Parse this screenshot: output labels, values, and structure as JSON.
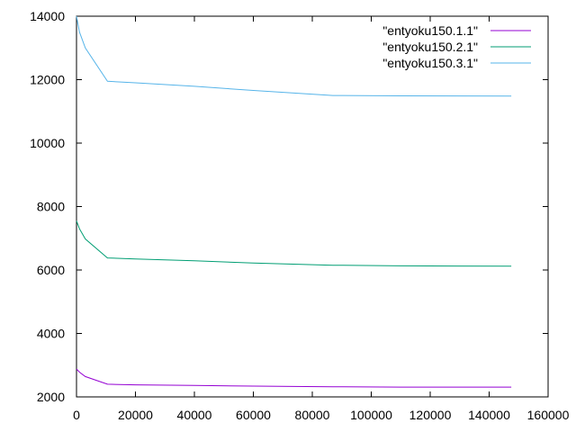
{
  "chart_data": {
    "type": "line",
    "title": "",
    "xlabel": "",
    "ylabel": "",
    "xlim": [
      0,
      160000
    ],
    "ylim": [
      2000,
      14000
    ],
    "xticks": [
      "0",
      "20000",
      "40000",
      "60000",
      "80000",
      "100000",
      "120000",
      "140000",
      "160000"
    ],
    "yticks": [
      "2000",
      "4000",
      "6000",
      "8000",
      "10000",
      "12000",
      "14000"
    ],
    "xtick_values": [
      0,
      20000,
      40000,
      60000,
      80000,
      100000,
      120000,
      140000,
      160000
    ],
    "ytick_values": [
      2000,
      4000,
      6000,
      8000,
      10000,
      12000,
      14000
    ],
    "grid": false,
    "legend_position": "top-right",
    "series": [
      {
        "name": "\"entyoku150.1.1\"",
        "color": "#9400d3",
        "x": [
          0,
          1000,
          3000,
          10500,
          20000,
          40000,
          60000,
          87000,
          110000,
          147500
        ],
        "y": [
          2880,
          2780,
          2640,
          2400,
          2380,
          2360,
          2340,
          2320,
          2310,
          2310
        ]
      },
      {
        "name": "\"entyoku150.2.1\"",
        "color": "#009e73",
        "x": [
          0,
          1000,
          3000,
          10500,
          20000,
          40000,
          60000,
          87000,
          110000,
          147500
        ],
        "y": [
          7550,
          7300,
          6980,
          6380,
          6350,
          6290,
          6220,
          6150,
          6130,
          6120
        ]
      },
      {
        "name": "\"entyoku150.3.1\"",
        "color": "#56b4e9",
        "x": [
          0,
          1000,
          3000,
          10500,
          20000,
          40000,
          60000,
          87000,
          110000,
          147500
        ],
        "y": [
          14000,
          13500,
          13000,
          11950,
          11900,
          11790,
          11660,
          11500,
          11490,
          11480
        ]
      }
    ]
  }
}
